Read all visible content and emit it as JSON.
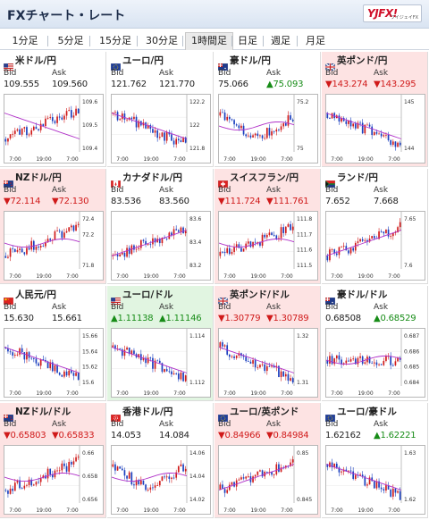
{
  "title": "FXチャート・レート",
  "logo": {
    "text": "YJFX!",
    "sub": "ワイジェイFX"
  },
  "tabs": [
    {
      "label": "1分足",
      "active": false
    },
    {
      "label": "5分足",
      "active": false
    },
    {
      "label": "15分足",
      "active": false
    },
    {
      "label": "30分足",
      "active": false
    },
    {
      "label": "1時間足",
      "active": true
    },
    {
      "label": "日足",
      "active": false
    },
    {
      "label": "週足",
      "active": false
    },
    {
      "label": "月足",
      "active": false
    }
  ],
  "colors": {
    "down": "#d01a1a",
    "up": "#178c17",
    "down_bg": "#fde3e3",
    "up_bg": "#e1f5e1",
    "ma_line": "#b030c8",
    "candle_up": "#d01a1a",
    "candle_down": "#1a3fbf"
  },
  "bid_label": "Bid",
  "ask_label": "Ask",
  "x_ticks": [
    "7:00",
    "19:00",
    "7:00"
  ],
  "pairs": [
    {
      "name": "米ドル/円",
      "flag": "us",
      "bid": "109.555",
      "ask": "109.560",
      "trend": "flat",
      "y_ticks": [
        "109.6",
        "109.5",
        "109.4"
      ],
      "ma": "down",
      "path": "up"
    },
    {
      "name": "ユーロ/円",
      "flag": "eu",
      "bid": "121.762",
      "ask": "121.770",
      "trend": "flat",
      "y_ticks": [
        "122.2",
        "122",
        "121.8"
      ],
      "ma": "down",
      "path": "down"
    },
    {
      "name": "豪ドル/円",
      "flag": "au",
      "bid": "75.066",
      "ask": "▲75.093",
      "bid_trend": "flat",
      "ask_trend": "up",
      "trend": "flat",
      "y_ticks": [
        "75.2",
        "",
        "75"
      ],
      "ma": "flat",
      "path": "vee"
    },
    {
      "name": "英ポンド/円",
      "flag": "gb",
      "bid": "▼143.274",
      "ask": "▼143.295",
      "trend": "down",
      "y_ticks": [
        "145",
        "",
        "144"
      ],
      "ma": "down",
      "path": "down"
    },
    {
      "name": "NZドル/円",
      "flag": "nz",
      "bid": "▼72.114",
      "ask": "▼72.130",
      "trend": "down",
      "y_ticks": [
        "72.4",
        "72.2",
        "",
        "71.8"
      ],
      "ma": "flat",
      "path": "up"
    },
    {
      "name": "カナダドル/円",
      "flag": "ca",
      "bid": "83.536",
      "ask": "83.560",
      "trend": "flat",
      "y_ticks": [
        "83.6",
        "83.4",
        "83.2"
      ],
      "ma": "up",
      "path": "up"
    },
    {
      "name": "スイスフラン/円",
      "flag": "ch",
      "bid": "▼111.724",
      "ask": "▼111.761",
      "trend": "down",
      "y_ticks": [
        "111.8",
        "111.7",
        "111.6",
        "111.5"
      ],
      "ma": "flat",
      "path": "up"
    },
    {
      "name": "ランド/円",
      "flag": "za",
      "bid": "7.652",
      "ask": "7.668",
      "trend": "flat",
      "y_ticks": [
        "7.65",
        "",
        "7.6"
      ],
      "ma": "up",
      "path": "up"
    },
    {
      "name": "人民元/円",
      "flag": "cn",
      "bid": "15.630",
      "ask": "15.661",
      "trend": "flat",
      "y_ticks": [
        "15.66",
        "15.64",
        "15.62",
        "15.6"
      ],
      "ma": "down",
      "path": "down"
    },
    {
      "name": "ユーロ/ドル",
      "flag": "us",
      "bid": "▲1.11138",
      "ask": "▲1.11146",
      "trend": "up",
      "y_ticks": [
        "1.114",
        "",
        "1.112"
      ],
      "ma": "down",
      "path": "down"
    },
    {
      "name": "英ポンド/ドル",
      "flag": "gb",
      "bid": "▼1.30779",
      "ask": "▼1.30789",
      "trend": "down",
      "y_ticks": [
        "1.32",
        "",
        "1.31"
      ],
      "ma": "down",
      "path": "down"
    },
    {
      "name": "豪ドル/ドル",
      "flag": "au",
      "bid": "0.68508",
      "ask": "▲0.68529",
      "bid_trend": "flat",
      "ask_trend": "up",
      "trend": "flat",
      "y_ticks": [
        "0.687",
        "0.686",
        "0.685",
        "0.684"
      ],
      "ma": "flat",
      "path": "flat"
    },
    {
      "name": "NZドル/ドル",
      "flag": "nz",
      "bid": "▼0.65803",
      "ask": "▼0.65833",
      "trend": "down",
      "y_ticks": [
        "0.66",
        "0.658",
        "0.656"
      ],
      "ma": "flat",
      "path": "up"
    },
    {
      "name": "香港ドル/円",
      "flag": "hk",
      "bid": "14.053",
      "ask": "14.084",
      "trend": "flat",
      "y_ticks": [
        "14.06",
        "14.04",
        "14.02"
      ],
      "ma": "flat",
      "path": "vee"
    },
    {
      "name": "ユーロ/英ポンド",
      "flag": "eu",
      "bid": "▼0.84966",
      "ask": "▼0.84984",
      "trend": "down",
      "y_ticks": [
        "0.85",
        "",
        "0.845"
      ],
      "ma": "up",
      "path": "up"
    },
    {
      "name": "ユーロ/豪ドル",
      "flag": "eu",
      "bid": "1.62162",
      "ask": "▲1.62221",
      "bid_trend": "flat",
      "ask_trend": "up",
      "trend": "flat",
      "y_ticks": [
        "1.63",
        "",
        "1.62"
      ],
      "ma": "down",
      "path": "down"
    }
  ]
}
